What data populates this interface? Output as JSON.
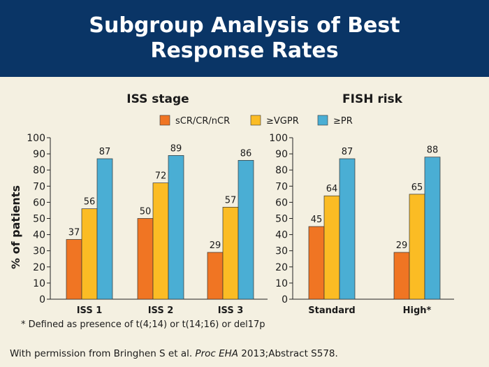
{
  "slide": {
    "title": "Subgroup Analysis of Best Response Rates",
    "footnote": "* Defined as presence of t(4;14) or t(14;16) or del17p",
    "credit_prefix": "With permission from Bringhen S et al. ",
    "credit_journal": "Proc EHA",
    "credit_suffix": " 2013;Abstract S578."
  },
  "colors": {
    "header_bg": "#0a3566",
    "background": "#f4f0e1",
    "series": [
      "#f07523",
      "#fbbc24",
      "#4aaed4"
    ]
  },
  "legend": [
    "sCR/CR/nCR",
    "≥VGPR",
    "≥PR"
  ],
  "ylabel": "% of patients",
  "chart_data": [
    {
      "type": "bar",
      "title": "ISS stage",
      "categories": [
        "ISS 1",
        "ISS 2",
        "ISS 3"
      ],
      "series": [
        {
          "name": "sCR/CR/nCR",
          "values": [
            37,
            50,
            29
          ]
        },
        {
          "name": "≥VGPR",
          "values": [
            56,
            72,
            57
          ]
        },
        {
          "name": "≥PR",
          "values": [
            87,
            89,
            86
          ]
        }
      ],
      "ylabel": "% of patients",
      "ylim": [
        0,
        100
      ],
      "yticks": [
        0,
        10,
        20,
        30,
        40,
        50,
        60,
        70,
        80,
        90,
        100
      ],
      "legend_position": "top-center"
    },
    {
      "type": "bar",
      "title": "FISH risk",
      "categories": [
        "Standard",
        "High*"
      ],
      "series": [
        {
          "name": "sCR/CR/nCR",
          "values": [
            45,
            29
          ]
        },
        {
          "name": "≥VGPR",
          "values": [
            64,
            65
          ]
        },
        {
          "name": "≥PR",
          "values": [
            87,
            88
          ]
        }
      ],
      "ylim": [
        0,
        100
      ],
      "yticks": [
        0,
        10,
        20,
        30,
        40,
        50,
        60,
        70,
        80,
        90,
        100
      ],
      "legend_position": "top-center"
    }
  ]
}
